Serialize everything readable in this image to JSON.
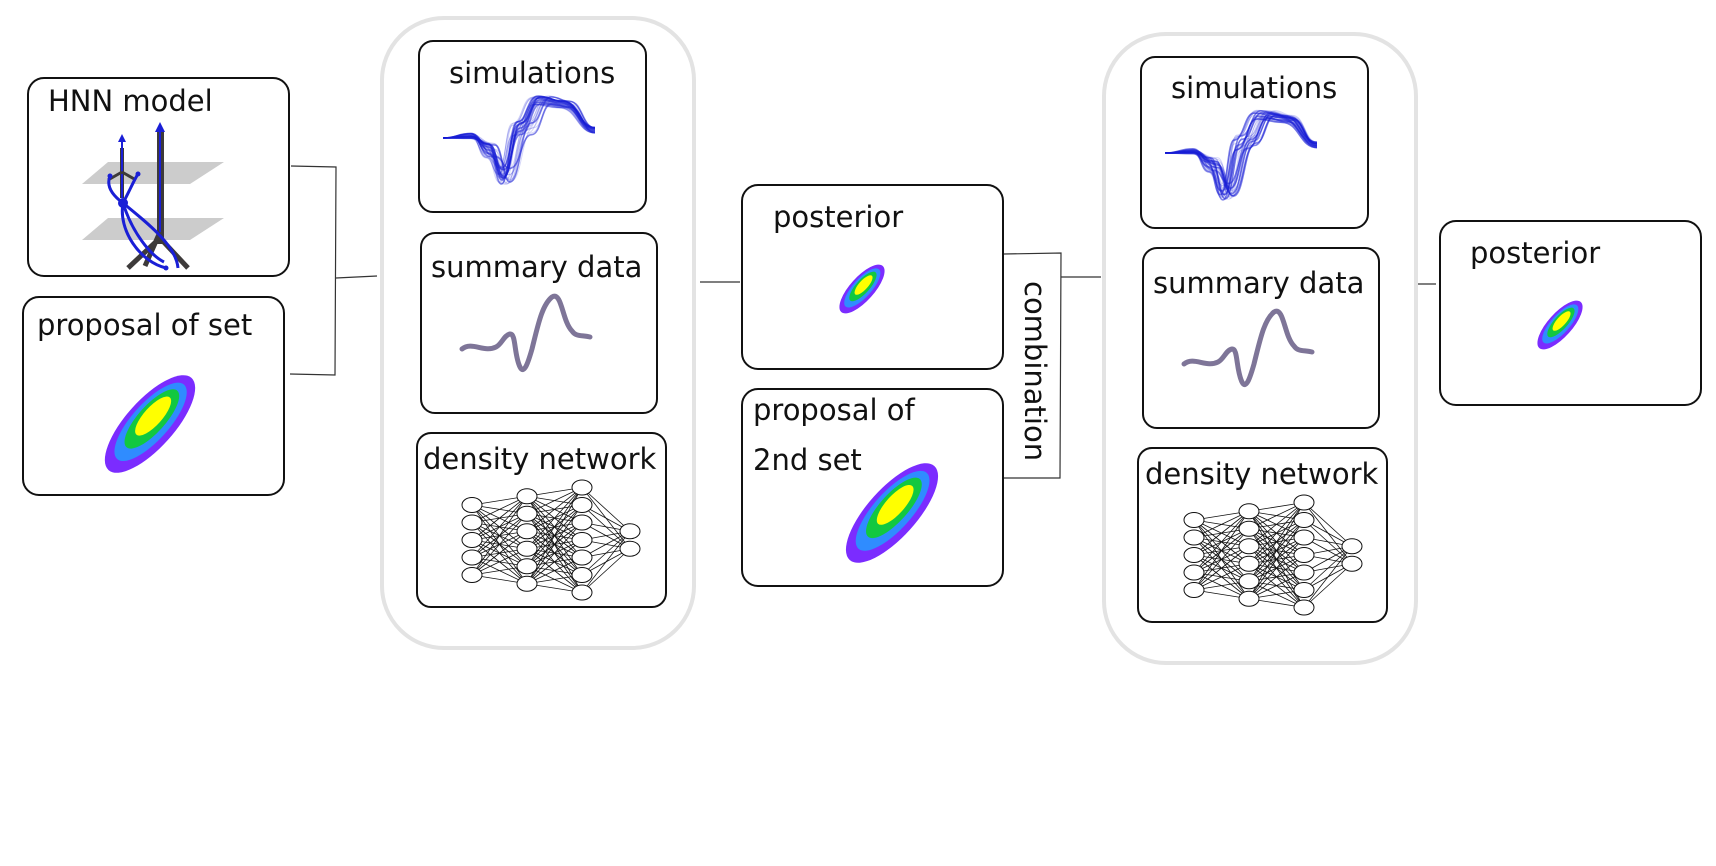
{
  "colors": {
    "box_stroke": "#111111",
    "group_stroke": "#e3e3e3",
    "trace_blue": "#1a1fd6",
    "summary_trace": "#7e7598",
    "density_outer": "#7b2cff",
    "density_2": "#2f8cff",
    "density_3": "#12c840",
    "density_inner": "#ffff00",
    "plane_gray": "#cccccc",
    "neuron_dark": "#3d3a3a"
  },
  "blocks": {
    "hnn_model": {
      "title": "HNN model",
      "icon": "neuron-model-illustration"
    },
    "proposal_set": {
      "title": "proposal of set",
      "icon": "gaussian-density-icon"
    },
    "round1": {
      "simulations": "simulations",
      "summary": "summary data",
      "density": "density network"
    },
    "posterior1": {
      "title": "posterior"
    },
    "proposal_2nd": {
      "line1": "proposal of",
      "line2": "2nd set"
    },
    "combination": "combination",
    "round2": {
      "simulations": "simulations",
      "summary": "summary data",
      "density": "density network"
    },
    "posterior2": {
      "title": "posterior"
    }
  },
  "network": {
    "layers": [
      5,
      6,
      7,
      2
    ]
  }
}
